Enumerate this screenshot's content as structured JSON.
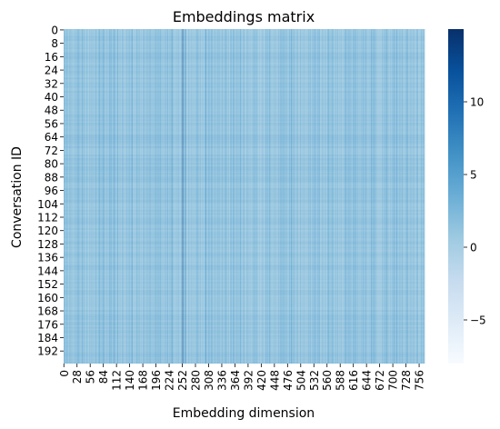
{
  "chart_data": {
    "type": "heatmap",
    "title": "Embeddings matrix",
    "xlabel": "Embedding dimension",
    "ylabel": "Conversation ID",
    "rows": 200,
    "cols": 768,
    "x_tick_labels": [
      "0",
      "28",
      "56",
      "84",
      "112",
      "140",
      "168",
      "196",
      "224",
      "252",
      "280",
      "308",
      "336",
      "364",
      "392",
      "420",
      "448",
      "476",
      "504",
      "532",
      "560",
      "588",
      "616",
      "644",
      "672",
      "700",
      "728",
      "756"
    ],
    "y_tick_labels": [
      "0",
      "8",
      "16",
      "24",
      "32",
      "40",
      "48",
      "56",
      "64",
      "72",
      "80",
      "88",
      "96",
      "104",
      "112",
      "120",
      "128",
      "136",
      "144",
      "152",
      "160",
      "168",
      "176",
      "184",
      "192"
    ],
    "colorbar": {
      "colormap": "Blues",
      "range": [
        -8,
        15
      ],
      "ticks": [
        -5,
        0,
        5,
        10
      ],
      "tick_labels": [
        "−5",
        "0",
        "5",
        "10"
      ]
    },
    "typical_value_range": [
      -2,
      4
    ],
    "notable_columns": [
      {
        "dimension": 253,
        "value": 14
      },
      {
        "dimension": 259,
        "value": 6
      }
    ]
  }
}
